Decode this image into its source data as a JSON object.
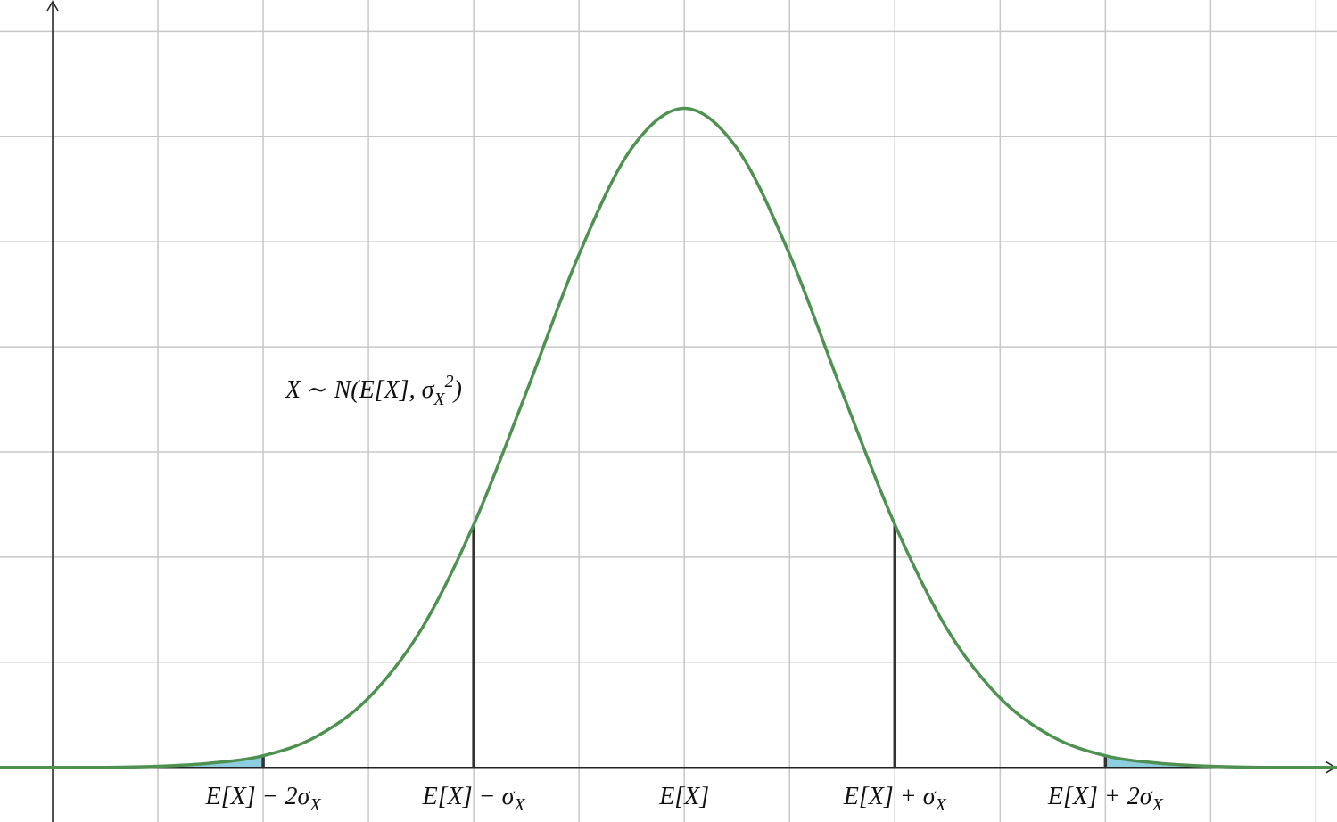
{
  "chart_data": {
    "type": "line",
    "xlim": [
      -0.5,
      12.2
    ],
    "ylim": [
      -0.52,
      7.3
    ],
    "xticks": [
      0,
      1,
      2,
      3,
      4,
      5,
      6,
      7,
      8,
      9,
      10,
      11,
      12
    ],
    "yticks": [
      0,
      1,
      2,
      3,
      4,
      5,
      6,
      7
    ],
    "grid": true,
    "tick_labels": false,
    "series": [
      {
        "color": "#4f9150",
        "x": [
          -0.5,
          0,
          0.5,
          1,
          1.5,
          2,
          2.5,
          3,
          3.5,
          4,
          4.5,
          5,
          5.5,
          6,
          6.5,
          7,
          7.5,
          8,
          8.5,
          9,
          9.5,
          10,
          10.5,
          11,
          11.5,
          12,
          12.5
        ],
        "y": [
          0,
          0,
          0,
          0.01,
          0.04,
          0.11,
          0.29,
          0.66,
          1.31,
          2.31,
          3.57,
          4.88,
          5.89,
          6.27,
          5.89,
          4.88,
          3.57,
          2.31,
          1.31,
          0.66,
          0.29,
          0.11,
          0.04,
          0.01,
          0,
          0,
          0
        ]
      }
    ],
    "markers": [
      {
        "x": 2,
        "y": 0.11,
        "label": "E[X] − 2σ",
        "sub": "X",
        "shade": "left"
      },
      {
        "x": 4,
        "y": 2.31,
        "label": "E[X] − σ",
        "sub": "X"
      },
      {
        "x": 6,
        "label": "E[X]"
      },
      {
        "x": 8,
        "y": 2.31,
        "label": "E[X] + σ",
        "sub": "X"
      },
      {
        "x": 10,
        "y": 0.11,
        "label": "E[X] + 2σ",
        "sub": "X",
        "shade": "right"
      }
    ],
    "shade_color": "#8dcde0",
    "annotation": {
      "main": "X ∼ N(E[X], σ",
      "sub": "X",
      "sup": "2",
      "close": ")"
    }
  }
}
